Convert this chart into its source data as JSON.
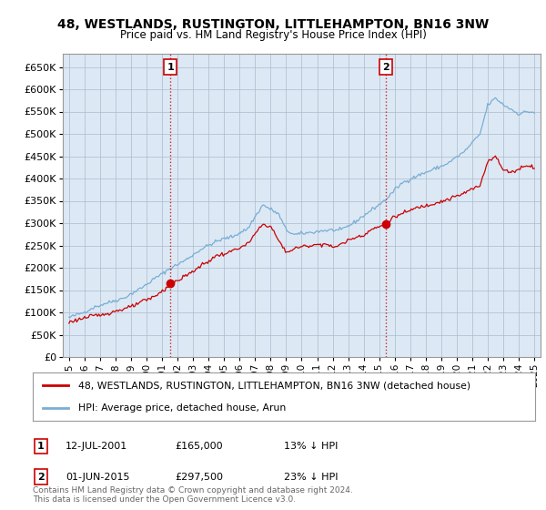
{
  "title": "48, WESTLANDS, RUSTINGTON, LITTLEHAMPTON, BN16 3NW",
  "subtitle": "Price paid vs. HM Land Registry's House Price Index (HPI)",
  "legend_line1": "48, WESTLANDS, RUSTINGTON, LITTLEHAMPTON, BN16 3NW (detached house)",
  "legend_line2": "HPI: Average price, detached house, Arun",
  "annotation1_label": "1",
  "annotation1_date": "12-JUL-2001",
  "annotation1_price": "£165,000",
  "annotation1_hpi": "13% ↓ HPI",
  "annotation2_label": "2",
  "annotation2_date": "01-JUN-2015",
  "annotation2_price": "£297,500",
  "annotation2_hpi": "23% ↓ HPI",
  "footer": "Contains HM Land Registry data © Crown copyright and database right 2024.\nThis data is licensed under the Open Government Licence v3.0.",
  "hpi_color": "#7aadd4",
  "price_color": "#cc0000",
  "annotation_color": "#cc0000",
  "background_color": "#ffffff",
  "plot_bg_color": "#dce9f5",
  "grid_color": "#aabbcc",
  "ylim": [
    0,
    680000
  ],
  "yticks": [
    0,
    50000,
    100000,
    150000,
    200000,
    250000,
    300000,
    350000,
    400000,
    450000,
    500000,
    550000,
    600000,
    650000
  ],
  "sale1_x": 2001.53,
  "sale1_y": 165000,
  "sale2_x": 2015.42,
  "sale2_y": 297500,
  "xlim_left": 1994.6,
  "xlim_right": 2025.4
}
